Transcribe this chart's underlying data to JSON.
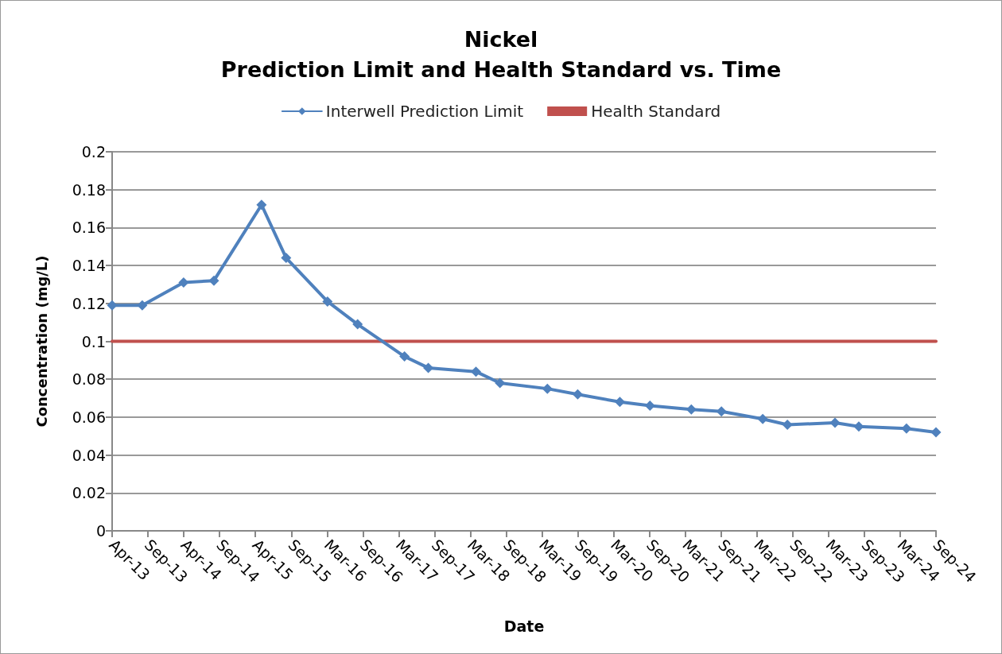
{
  "chart_data": {
    "type": "line",
    "title": "Nickel\nPrediction Limit and Health Standard vs. Time",
    "xlabel": "Date",
    "ylabel": "Concentration (mg/L)",
    "x": [
      "2013-04-03",
      "2013-09-03",
      "2014-04-01",
      "2014-09-02",
      "2015-05-02",
      "2015-09-04",
      "2016-04-01",
      "2016-09-01",
      "2017-04-27",
      "2017-08-26",
      "2018-04-25",
      "2018-08-25",
      "2019-04-23",
      "2019-09-24",
      "2020-04-25",
      "2020-09-25",
      "2021-04-23",
      "2021-09-23",
      "2022-04-21",
      "2022-08-24",
      "2023-04-23",
      "2023-08-22",
      "2024-04-20",
      "2024-09-17"
    ],
    "series": [
      {
        "name": "Interwell Prediction Limit",
        "color": "#4f81bd",
        "marker": "diamond",
        "values": [
          0.119,
          0.119,
          0.131,
          0.132,
          0.172,
          0.144,
          0.121,
          0.109,
          0.092,
          0.086,
          0.084,
          0.078,
          0.075,
          0.072,
          0.068,
          0.066,
          0.064,
          0.063,
          0.059,
          0.056,
          0.057,
          0.055,
          0.054,
          0.052
        ]
      },
      {
        "name": "Health Standard",
        "color": "#c0504d",
        "marker": "none",
        "x": [
          "2013-04-03",
          "2024-09-17"
        ],
        "values": [
          0.1,
          0.1
        ]
      }
    ],
    "xlim": [
      "2013-04-03",
      "2024-09-17"
    ],
    "xticks": [
      {
        "value": "2013-04-03",
        "label": "Apr-13"
      },
      {
        "value": "2013-09-30",
        "label": "Sep-13"
      },
      {
        "value": "2014-04-02",
        "label": "Apr-14"
      },
      {
        "value": "2014-09-30",
        "label": "Sep-14"
      },
      {
        "value": "2015-04-01",
        "label": "Apr-15"
      },
      {
        "value": "2015-09-30",
        "label": "Sep-15"
      },
      {
        "value": "2016-03-30",
        "label": "Mar-16"
      },
      {
        "value": "2016-09-28",
        "label": "Sep-16"
      },
      {
        "value": "2017-03-29",
        "label": "Mar-17"
      },
      {
        "value": "2017-09-27",
        "label": "Sep-17"
      },
      {
        "value": "2018-03-28",
        "label": "Mar-18"
      },
      {
        "value": "2018-09-26",
        "label": "Sep-18"
      },
      {
        "value": "2019-03-27",
        "label": "Mar-19"
      },
      {
        "value": "2019-09-25",
        "label": "Sep-19"
      },
      {
        "value": "2020-03-25",
        "label": "Mar-20"
      },
      {
        "value": "2020-09-23",
        "label": "Sep-20"
      },
      {
        "value": "2021-03-24",
        "label": "Mar-21"
      },
      {
        "value": "2021-09-22",
        "label": "Sep-21"
      },
      {
        "value": "2022-03-23",
        "label": "Mar-22"
      },
      {
        "value": "2022-09-21",
        "label": "Sep-22"
      },
      {
        "value": "2023-03-22",
        "label": "Mar-23"
      },
      {
        "value": "2023-09-20",
        "label": "Sep-23"
      },
      {
        "value": "2024-03-20",
        "label": "Mar-24"
      },
      {
        "value": "2024-09-17",
        "label": "Sep-24"
      }
    ],
    "ylim": [
      0,
      0.2
    ],
    "yticks": [
      0,
      0.02,
      0.04,
      0.06,
      0.08,
      0.1,
      0.12,
      0.14,
      0.16,
      0.18,
      0.2
    ],
    "grid": "y",
    "legend": "top",
    "line_style": "solid"
  }
}
